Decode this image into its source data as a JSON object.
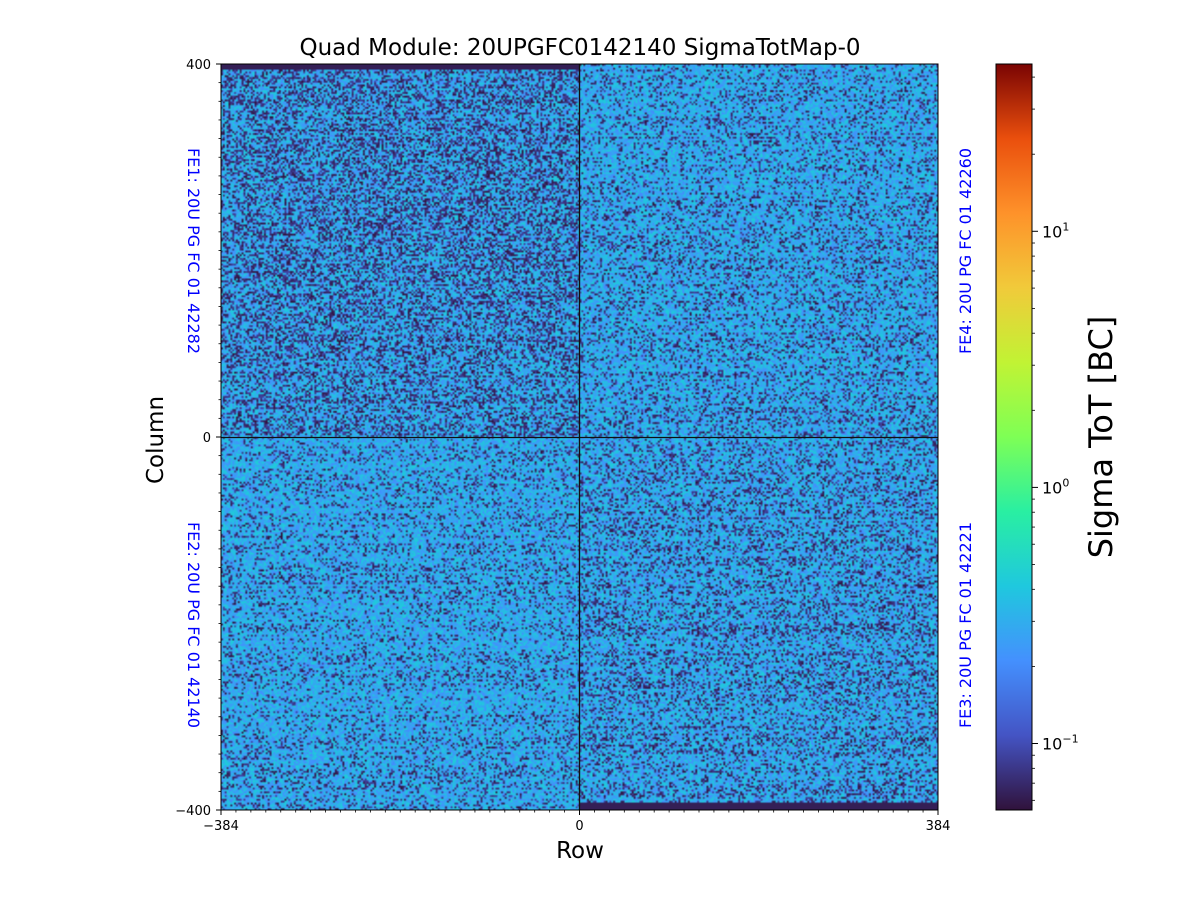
{
  "chart_data": {
    "type": "heatmap",
    "title": "Quad Module: 20UPGFC0142140 SigmaTotMap-0",
    "xlabel": "Row",
    "ylabel": "Column",
    "xlim": [
      -384,
      384
    ],
    "ylim": [
      -400,
      400
    ],
    "xticks": [
      "−384",
      "0",
      "384"
    ],
    "yticks": [
      "400",
      "0",
      "−400"
    ],
    "xtick_values": [
      -384,
      0,
      384
    ],
    "ytick_values": [
      400,
      0,
      -400
    ],
    "colorbar": {
      "label": "Sigma ToT [BC]",
      "scale": "log",
      "colormap": "turbo",
      "range": [
        0.055,
        45
      ],
      "ticks": [
        {
          "value": 10,
          "base": "10",
          "exp": "1"
        },
        {
          "value": 1,
          "base": "10",
          "exp": "0"
        },
        {
          "value": 0.1,
          "base": "10",
          "exp": "−1"
        }
      ]
    },
    "quadrants": [
      {
        "name": "FE1",
        "label": "FE1: 20U PG FC 01 42282",
        "position": "top-left",
        "x_range": [
          -384,
          0
        ],
        "y_range": [
          0,
          400
        ],
        "typical_value": 0.3,
        "dark_fraction": 0.38,
        "edge_band": "top"
      },
      {
        "name": "FE4",
        "label": "FE4: 20U PG FC 01 42260",
        "position": "top-right",
        "x_range": [
          0,
          384
        ],
        "y_range": [
          0,
          400
        ],
        "typical_value": 0.3,
        "dark_fraction": 0.22,
        "edge_band": "none"
      },
      {
        "name": "FE2",
        "label": "FE2: 20U PG FC 01 42140",
        "position": "bottom-left",
        "x_range": [
          -384,
          0
        ],
        "y_range": [
          -400,
          0
        ],
        "typical_value": 0.3,
        "dark_fraction": 0.2,
        "edge_band": "none"
      },
      {
        "name": "FE3",
        "label": "FE3: 20U PG FC 01 42221",
        "position": "bottom-right",
        "x_range": [
          0,
          384
        ],
        "y_range": [
          -400,
          0
        ],
        "typical_value": 0.3,
        "dark_fraction": 0.26,
        "edge_band": "bottom"
      }
    ]
  }
}
